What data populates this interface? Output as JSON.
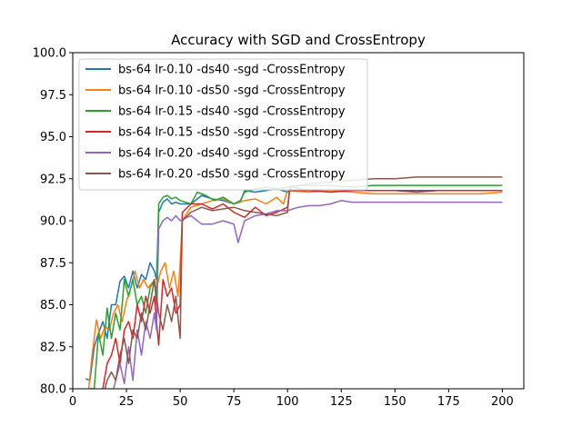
{
  "chart_data": {
    "type": "line",
    "title": "Accuracy with SGD and CrossEntropy",
    "xlabel": "",
    "ylabel": "",
    "xlim": [
      0,
      210
    ],
    "ylim": [
      80.0,
      100.0
    ],
    "xticks": [
      0,
      25,
      50,
      75,
      100,
      125,
      150,
      175,
      200
    ],
    "yticks": [
      "80.0",
      "82.5",
      "85.0",
      "87.5",
      "90.0",
      "92.5",
      "95.0",
      "97.5",
      "100.0"
    ],
    "grid": false,
    "legend_position": "upper-left",
    "series": [
      {
        "name": "bs-64 lr-0.10 -ds40 -sgd -CrossEntropy",
        "color": "#1f77b4",
        "points": [
          [
            6,
            80.6
          ],
          [
            8,
            80.5
          ],
          [
            10,
            82.5
          ],
          [
            12,
            83.3
          ],
          [
            14,
            84.0
          ],
          [
            16,
            83.0
          ],
          [
            18,
            85.0
          ],
          [
            20,
            85.0
          ],
          [
            22,
            86.4
          ],
          [
            24,
            86.7
          ],
          [
            26,
            86.0
          ],
          [
            28,
            87.0
          ],
          [
            30,
            86.0
          ],
          [
            32,
            86.8
          ],
          [
            34,
            86.5
          ],
          [
            36,
            87.5
          ],
          [
            38,
            87.0
          ],
          [
            39,
            86.5
          ],
          [
            40,
            90.5
          ],
          [
            42,
            91.1
          ],
          [
            44,
            91.3
          ],
          [
            46,
            91.0
          ],
          [
            48,
            91.1
          ],
          [
            50,
            91.0
          ],
          [
            55,
            91.0
          ],
          [
            60,
            91.5
          ],
          [
            65,
            91.3
          ],
          [
            70,
            91.2
          ],
          [
            75,
            91.0
          ],
          [
            78,
            91.1
          ],
          [
            80,
            91.8
          ],
          [
            85,
            91.7
          ],
          [
            90,
            91.8
          ],
          [
            95,
            91.9
          ],
          [
            100,
            91.7
          ],
          [
            102,
            92.0
          ],
          [
            110,
            91.8
          ],
          [
            120,
            91.8
          ],
          [
            130,
            91.8
          ],
          [
            140,
            91.8
          ],
          [
            150,
            91.8
          ],
          [
            160,
            91.7
          ],
          [
            170,
            91.8
          ],
          [
            180,
            91.8
          ],
          [
            190,
            91.8
          ],
          [
            200,
            91.8
          ]
        ]
      },
      {
        "name": "bs-64 lr-0.10 -ds50 -sgd -CrossEntropy",
        "color": "#ff7f0e",
        "points": [
          [
            7,
            79.5
          ],
          [
            9,
            82.0
          ],
          [
            11,
            84.1
          ],
          [
            13,
            83.0
          ],
          [
            15,
            83.7
          ],
          [
            17,
            83.5
          ],
          [
            19,
            84.5
          ],
          [
            21,
            85.0
          ],
          [
            23,
            84.0
          ],
          [
            25,
            85.2
          ],
          [
            27,
            86.0
          ],
          [
            29,
            87.0
          ],
          [
            31,
            86.0
          ],
          [
            33,
            86.5
          ],
          [
            35,
            86.0
          ],
          [
            37,
            86.3
          ],
          [
            39,
            86.0
          ],
          [
            41,
            87.0
          ],
          [
            43,
            87.5
          ],
          [
            45,
            86.0
          ],
          [
            47,
            87.0
          ],
          [
            49,
            85.5
          ],
          [
            50,
            87.5
          ],
          [
            51,
            90.0
          ],
          [
            55,
            90.8
          ],
          [
            60,
            91.0
          ],
          [
            65,
            91.2
          ],
          [
            70,
            91.3
          ],
          [
            75,
            91.0
          ],
          [
            80,
            91.2
          ],
          [
            85,
            91.3
          ],
          [
            90,
            91.0
          ],
          [
            95,
            91.4
          ],
          [
            98,
            91.0
          ],
          [
            100,
            91.8
          ],
          [
            110,
            91.7
          ],
          [
            120,
            91.8
          ],
          [
            130,
            91.7
          ],
          [
            140,
            91.6
          ],
          [
            150,
            91.6
          ],
          [
            160,
            91.6
          ],
          [
            170,
            91.6
          ],
          [
            180,
            91.6
          ],
          [
            190,
            91.6
          ],
          [
            200,
            91.7
          ]
        ]
      },
      {
        "name": "bs-64 lr-0.15 -ds40 -sgd -CrossEntropy",
        "color": "#2ca02c",
        "points": [
          [
            8,
            80.0
          ],
          [
            10,
            80.0
          ],
          [
            12,
            83.3
          ],
          [
            14,
            82.0
          ],
          [
            16,
            84.8
          ],
          [
            18,
            83.0
          ],
          [
            20,
            84.5
          ],
          [
            22,
            83.5
          ],
          [
            24,
            86.5
          ],
          [
            26,
            85.5
          ],
          [
            28,
            86.5
          ],
          [
            30,
            85.0
          ],
          [
            32,
            85.5
          ],
          [
            34,
            84.5
          ],
          [
            36,
            86.0
          ],
          [
            38,
            86.5
          ],
          [
            39,
            85.0
          ],
          [
            40,
            91.0
          ],
          [
            42,
            91.4
          ],
          [
            44,
            91.5
          ],
          [
            46,
            91.3
          ],
          [
            48,
            91.4
          ],
          [
            50,
            91.2
          ],
          [
            55,
            91.0
          ],
          [
            58,
            91.7
          ],
          [
            62,
            91.5
          ],
          [
            66,
            91.2
          ],
          [
            70,
            91.4
          ],
          [
            75,
            91.0
          ],
          [
            78,
            91.2
          ],
          [
            80,
            91.7
          ],
          [
            85,
            91.9
          ],
          [
            90,
            92.0
          ],
          [
            95,
            91.9
          ],
          [
            100,
            92.0
          ],
          [
            105,
            92.1
          ],
          [
            110,
            92.1
          ],
          [
            120,
            92.1
          ],
          [
            130,
            92.0
          ],
          [
            140,
            92.1
          ],
          [
            150,
            92.1
          ],
          [
            160,
            92.1
          ],
          [
            170,
            92.1
          ],
          [
            180,
            92.1
          ],
          [
            190,
            92.1
          ],
          [
            200,
            92.1
          ]
        ]
      },
      {
        "name": "bs-64 lr-0.15 -ds50 -sgd -CrossEntropy",
        "color": "#d62728",
        "points": [
          [
            12,
            79.5
          ],
          [
            14,
            80.0
          ],
          [
            16,
            81.5
          ],
          [
            18,
            82.0
          ],
          [
            20,
            83.0
          ],
          [
            22,
            81.5
          ],
          [
            24,
            83.5
          ],
          [
            26,
            84.0
          ],
          [
            28,
            83.0
          ],
          [
            30,
            85.0
          ],
          [
            32,
            84.0
          ],
          [
            34,
            85.5
          ],
          [
            36,
            84.5
          ],
          [
            38,
            85.5
          ],
          [
            40,
            82.6
          ],
          [
            42,
            86.5
          ],
          [
            44,
            85.5
          ],
          [
            46,
            86.0
          ],
          [
            48,
            84.5
          ],
          [
            50,
            85.0
          ],
          [
            51,
            90.5
          ],
          [
            55,
            91.0
          ],
          [
            60,
            91.0
          ],
          [
            65,
            90.7
          ],
          [
            70,
            91.0
          ],
          [
            75,
            90.5
          ],
          [
            80,
            90.2
          ],
          [
            85,
            90.8
          ],
          [
            90,
            90.3
          ],
          [
            95,
            90.5
          ],
          [
            100,
            90.8
          ],
          [
            101,
            91.8
          ],
          [
            110,
            91.8
          ],
          [
            120,
            91.7
          ],
          [
            130,
            91.8
          ],
          [
            140,
            91.8
          ],
          [
            150,
            91.8
          ],
          [
            160,
            91.8
          ],
          [
            170,
            91.8
          ],
          [
            180,
            91.8
          ],
          [
            190,
            91.8
          ],
          [
            200,
            91.8
          ]
        ]
      },
      {
        "name": "bs-64 lr-0.20 -ds40 -sgd -CrossEntropy",
        "color": "#9467bd",
        "points": [
          [
            18,
            79.5
          ],
          [
            20,
            80.5
          ],
          [
            22,
            81.5
          ],
          [
            24,
            80.3
          ],
          [
            26,
            82.5
          ],
          [
            28,
            80.5
          ],
          [
            30,
            83.5
          ],
          [
            32,
            82.0
          ],
          [
            34,
            84.0
          ],
          [
            36,
            83.0
          ],
          [
            38,
            84.5
          ],
          [
            39,
            83.5
          ],
          [
            40,
            89.5
          ],
          [
            42,
            90.0
          ],
          [
            44,
            90.2
          ],
          [
            46,
            90.0
          ],
          [
            48,
            90.3
          ],
          [
            50,
            90.0
          ],
          [
            55,
            90.3
          ],
          [
            60,
            89.8
          ],
          [
            65,
            89.8
          ],
          [
            70,
            90.0
          ],
          [
            75,
            89.8
          ],
          [
            77,
            88.7
          ],
          [
            80,
            90.0
          ],
          [
            85,
            90.3
          ],
          [
            90,
            90.4
          ],
          [
            95,
            90.6
          ],
          [
            100,
            90.6
          ],
          [
            105,
            90.8
          ],
          [
            110,
            90.9
          ],
          [
            115,
            90.9
          ],
          [
            120,
            91.0
          ],
          [
            125,
            91.2
          ],
          [
            130,
            91.1
          ],
          [
            140,
            91.1
          ],
          [
            150,
            91.1
          ],
          [
            160,
            91.1
          ],
          [
            170,
            91.1
          ],
          [
            180,
            91.1
          ],
          [
            190,
            91.1
          ],
          [
            200,
            91.1
          ]
        ]
      },
      {
        "name": "bs-64 lr-0.20 -ds50 -sgd -CrossEntropy",
        "color": "#8c564b",
        "points": [
          [
            12,
            80.0
          ],
          [
            14,
            79.5
          ],
          [
            16,
            80.5
          ],
          [
            18,
            81.0
          ],
          [
            20,
            80.5
          ],
          [
            22,
            82.0
          ],
          [
            24,
            83.0
          ],
          [
            26,
            81.5
          ],
          [
            28,
            83.5
          ],
          [
            30,
            83.0
          ],
          [
            32,
            84.5
          ],
          [
            34,
            83.5
          ],
          [
            36,
            85.0
          ],
          [
            38,
            86.5
          ],
          [
            40,
            84.5
          ],
          [
            42,
            83.5
          ],
          [
            44,
            85.0
          ],
          [
            46,
            84.0
          ],
          [
            48,
            85.5
          ],
          [
            50,
            83.0
          ],
          [
            51,
            90.0
          ],
          [
            55,
            90.5
          ],
          [
            60,
            90.8
          ],
          [
            65,
            90.6
          ],
          [
            70,
            90.7
          ],
          [
            75,
            90.8
          ],
          [
            80,
            90.6
          ],
          [
            85,
            90.5
          ],
          [
            90,
            90.4
          ],
          [
            95,
            90.3
          ],
          [
            100,
            90.5
          ],
          [
            101,
            92.0
          ],
          [
            110,
            92.2
          ],
          [
            120,
            92.3
          ],
          [
            130,
            92.4
          ],
          [
            140,
            92.5
          ],
          [
            150,
            92.5
          ],
          [
            160,
            92.6
          ],
          [
            170,
            92.6
          ],
          [
            180,
            92.6
          ],
          [
            190,
            92.6
          ],
          [
            200,
            92.6
          ]
        ]
      }
    ]
  }
}
